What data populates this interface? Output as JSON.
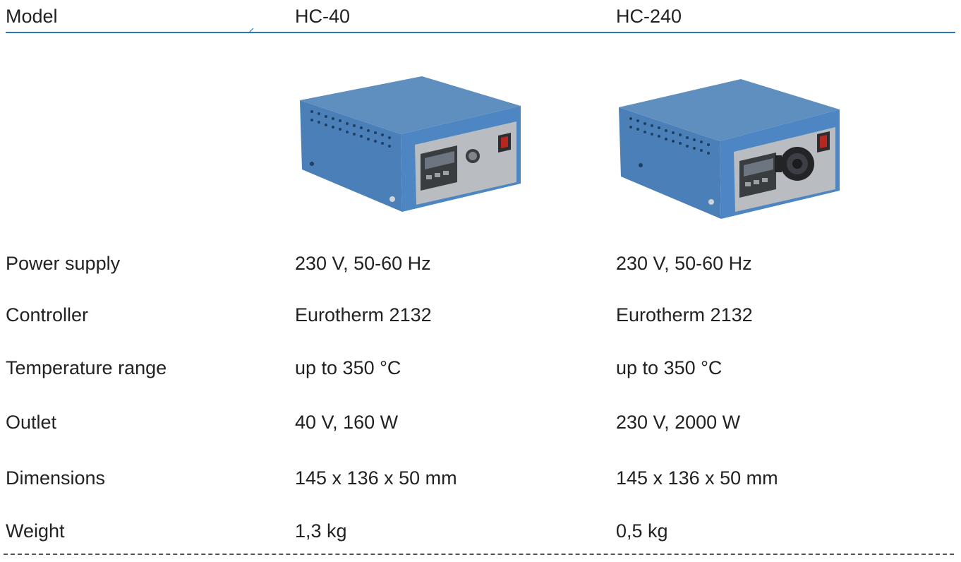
{
  "header": {
    "model_label": "Model",
    "col1": "HC-40",
    "col2": "HC-240"
  },
  "colors": {
    "rule": "#2a78b7",
    "case_blue": "#4d86c2",
    "case_top": "#5f8fbe",
    "front_panel": "#b9bcc0"
  },
  "products": [
    {
      "name": "hc40-photo",
      "icon": "heating-controller-image"
    },
    {
      "name": "hc240-photo",
      "icon": "heating-controller-with-socket-image"
    }
  ],
  "rows": [
    {
      "label": "Power supply",
      "hc40": "230 V, 50-60 Hz",
      "hc240": "230 V, 50-60 Hz"
    },
    {
      "label": "Controller",
      "hc40": "Eurotherm 2132",
      "hc240": "Eurotherm 2132"
    },
    {
      "label": "Temperature range",
      "hc40": "up to 350 °C",
      "hc240": "up to 350 °C"
    },
    {
      "label": "Outlet",
      "hc40": "40 V, 160 W",
      "hc240": "230 V, 2000 W"
    },
    {
      "label": "Dimensions",
      "hc40": "145 x 136 x 50 mm",
      "hc240": "145 x 136 x 50 mm"
    },
    {
      "label": "Weight",
      "hc40": "1,3 kg",
      "hc240": "0,5 kg"
    }
  ]
}
